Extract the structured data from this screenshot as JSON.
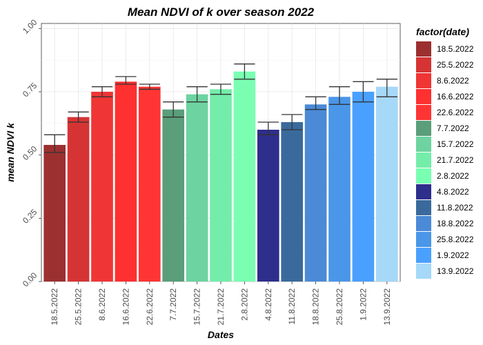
{
  "chart_data": {
    "type": "bar",
    "title": "Mean NDVI of k over season 2022",
    "xlabel": "Dates",
    "ylabel": "mean NDVI k",
    "ylim": [
      0,
      1.02
    ],
    "yticks": [
      0.0,
      0.25,
      0.5,
      0.75,
      1.0
    ],
    "ytick_labels": [
      "0.00",
      "0.25",
      "0.50",
      "0.75",
      "1.00"
    ],
    "grid": true,
    "legend_title": "factor(date)",
    "legend_position": "right",
    "categories": [
      "18.5.2022",
      "25.5.2022",
      "8.6.2022",
      "16.6.2022",
      "22.6.2022",
      "7.7.2022",
      "15.7.2022",
      "21.7.2022",
      "2.8.2022",
      "4.8.2022",
      "11.8.2022",
      "18.8.2022",
      "25.8.2022",
      "1.9.2022",
      "13.9.2022"
    ],
    "values": [
      0.54,
      0.65,
      0.75,
      0.79,
      0.77,
      0.68,
      0.74,
      0.76,
      0.83,
      0.6,
      0.63,
      0.7,
      0.73,
      0.75,
      0.77
    ],
    "error_low": [
      0.51,
      0.63,
      0.73,
      0.78,
      0.76,
      0.65,
      0.71,
      0.74,
      0.8,
      0.58,
      0.6,
      0.68,
      0.7,
      0.71,
      0.73
    ],
    "error_high": [
      0.58,
      0.67,
      0.77,
      0.81,
      0.78,
      0.71,
      0.77,
      0.78,
      0.86,
      0.63,
      0.66,
      0.73,
      0.77,
      0.79,
      0.8
    ],
    "colors": [
      "#9c3030",
      "#d63434",
      "#f03535",
      "#ff3030",
      "#ff3535",
      "#5a9e7a",
      "#6dd3a0",
      "#74edaa",
      "#7affb2",
      "#2e2e8c",
      "#3a6a9c",
      "#4a8ad6",
      "#4a96e8",
      "#4aa0ff",
      "#a6d8f8"
    ]
  }
}
